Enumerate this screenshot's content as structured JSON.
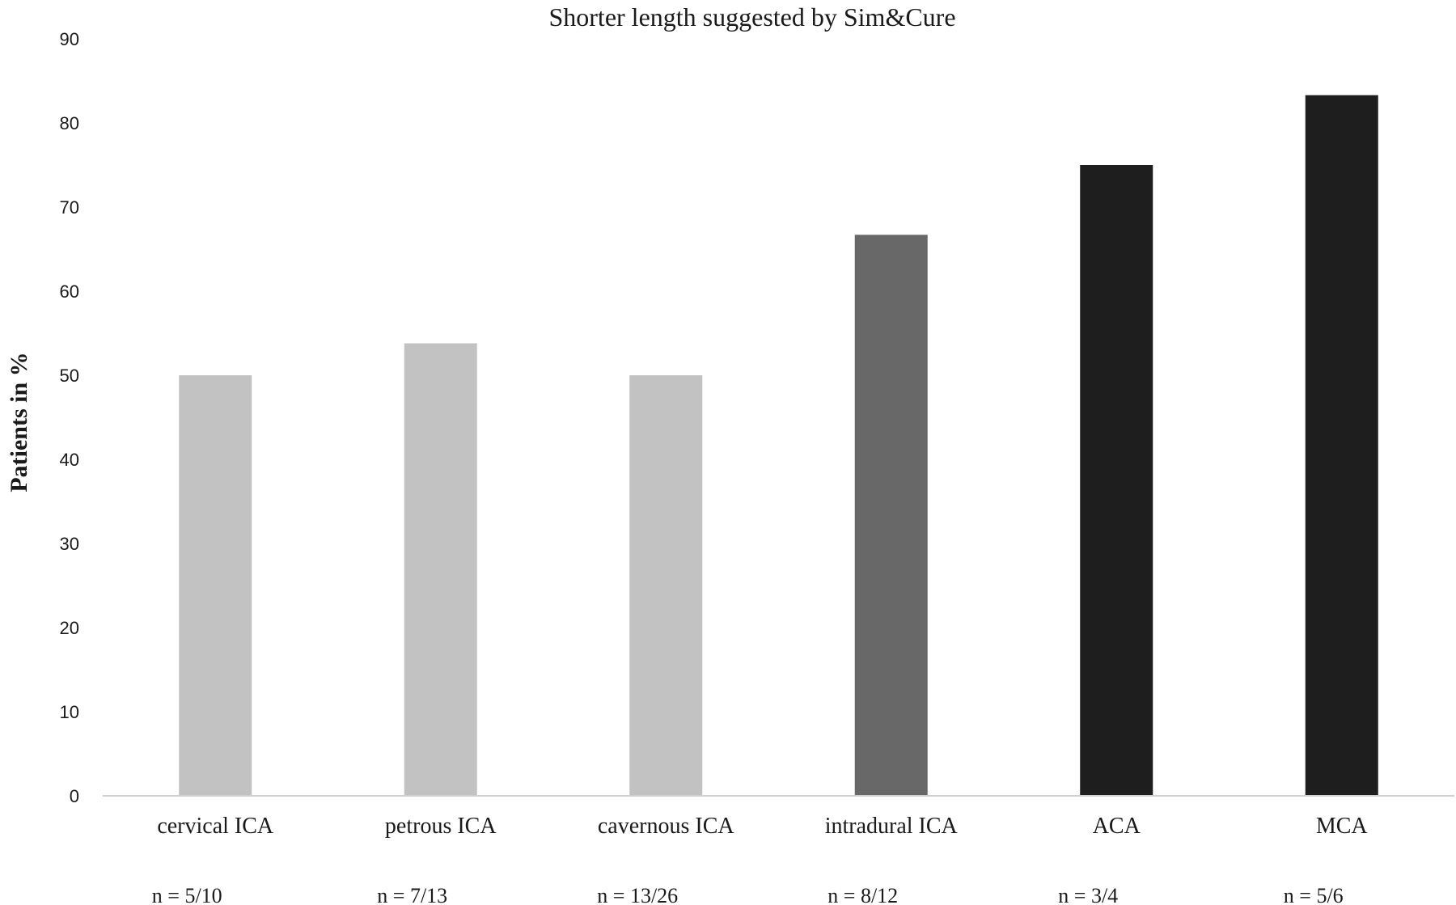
{
  "chart_data": {
    "type": "bar",
    "title": "Shorter length  suggested by Sim&Cure",
    "ylabel": "Patients in %",
    "xlabel": "",
    "ylim": [
      0,
      90
    ],
    "yticks": [
      "0",
      "10",
      "20",
      "30",
      "40",
      "50",
      "60",
      "70",
      "80",
      "90"
    ],
    "categories": [
      "cervical ICA",
      "petrous ICA",
      "cavernous ICA",
      "intradural ICA",
      "ACA",
      "MCA"
    ],
    "values": [
      50,
      53.8,
      50,
      66.7,
      75,
      83.3
    ],
    "counts": [
      "n = 5/10",
      "n = 7/13",
      "n = 13/26",
      "n = 8/12",
      "n = 3/4",
      "n = 5/6"
    ],
    "bar_colors": [
      "#c2c2c2",
      "#c2c2c2",
      "#c2c2c2",
      "#686868",
      "#1e1e1e",
      "#1e1e1e"
    ],
    "axis_color": "#d0d0d0",
    "grid": false,
    "legend": "none"
  }
}
